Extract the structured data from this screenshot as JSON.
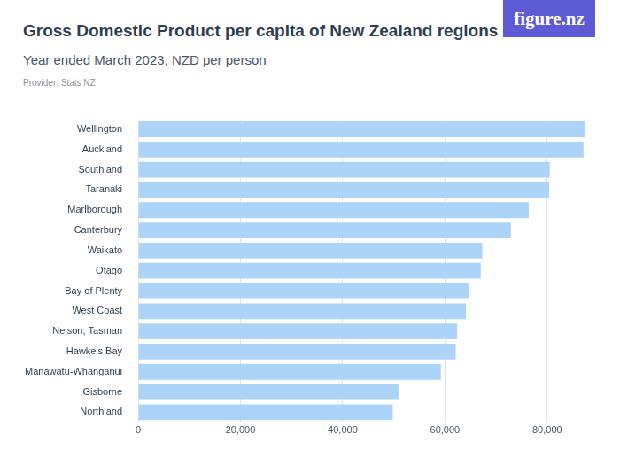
{
  "chart_data": {
    "type": "bar",
    "title": "Gross Domestic Product per capita of New Zealand regions",
    "subtitle": "Year ended March 2023, NZD per person",
    "provider": "Provider: Stats NZ",
    "brand": "figure.nz",
    "orientation": "horizontal",
    "categories": [
      "Wellington",
      "Auckland",
      "Southland",
      "Taranaki",
      "Marlborough",
      "Canterbury",
      "Waikato",
      "Otago",
      "Bay of Plenty",
      "West Coast",
      "Nelson, Tasman",
      "Hawke's Bay",
      "Manawatū-Whanganui",
      "Gisborne",
      "Northland"
    ],
    "values": [
      87300,
      87100,
      80500,
      80400,
      76400,
      72900,
      67300,
      67000,
      64600,
      64100,
      62400,
      62100,
      59200,
      51100,
      49800
    ],
    "color": "#abd4f8",
    "xlim": [
      0,
      88000
    ],
    "xticks": [
      0,
      {
        "value": 20000,
        "label": "20,000"
      },
      {
        "value": 40000,
        "label": "40,000"
      },
      {
        "value": 60000,
        "label": "60,000"
      },
      {
        "value": 80000,
        "label": "80,000"
      }
    ],
    "grid": true
  }
}
